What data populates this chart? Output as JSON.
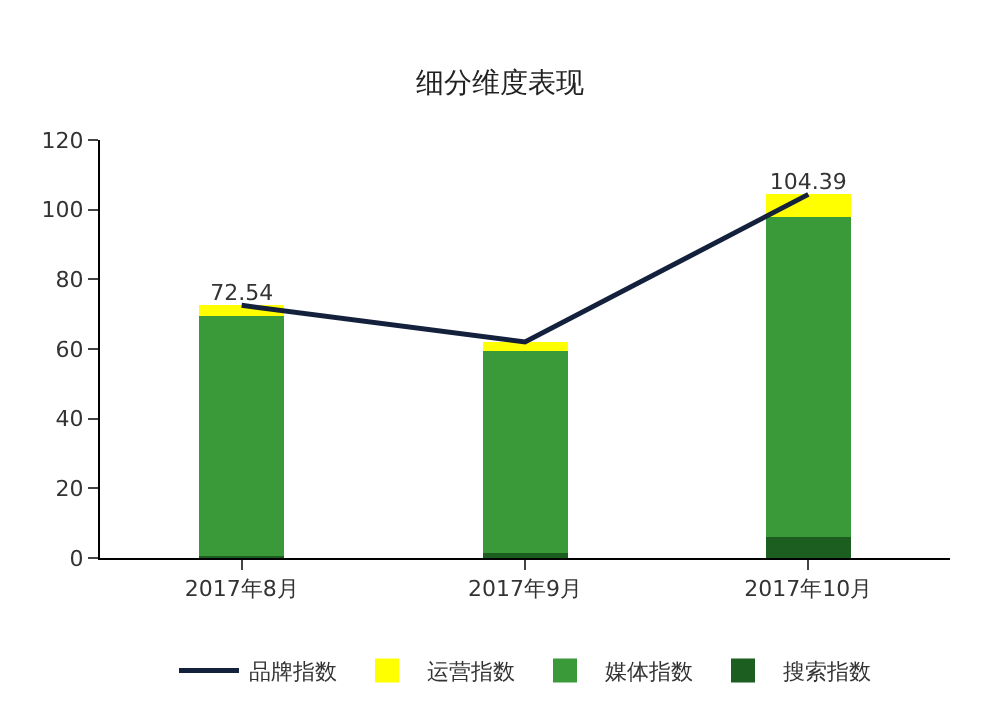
{
  "chart_data": {
    "type": "bar",
    "title": "细分维度表现",
    "categories": [
      "2017年8月",
      "2017年9月",
      "2017年10月"
    ],
    "stacked": true,
    "series": [
      {
        "name": "搜索指数",
        "color": "#1b5e20",
        "values": [
          0.5,
          1.5,
          6
        ]
      },
      {
        "name": "媒体指数",
        "color": "#3a9a3a",
        "values": [
          69,
          58,
          92
        ]
      },
      {
        "name": "运营指数",
        "color": "#ffff00",
        "values": [
          3,
          2.5,
          6.4
        ]
      },
      {
        "name": "品牌指数",
        "color": "#14213d",
        "type": "line",
        "values": [
          72.54,
          62,
          104.39
        ],
        "value_labels": [
          "72.54",
          null,
          "104.39"
        ]
      }
    ],
    "ylim": [
      0,
      120
    ],
    "yticks": [
      0,
      20,
      40,
      60,
      80,
      100,
      120
    ],
    "grid": false,
    "legend": "bottom",
    "marker": "none",
    "line_style": "solid"
  }
}
